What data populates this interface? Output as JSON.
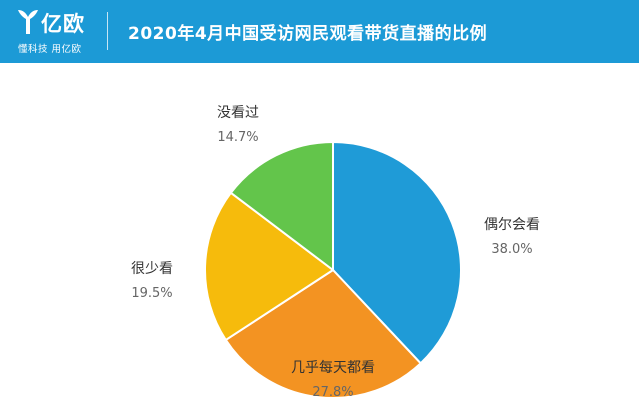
{
  "header": {
    "logo_text": "亿欧",
    "slogan": "懂科技 用亿欧",
    "title": "2020年4月中国受访网民观看带货直播的比例",
    "bg_color": "#1c9ad6"
  },
  "chart_data": {
    "type": "pie",
    "title": "2020年4月中国受访网民观看带货直播的比例",
    "slices": [
      {
        "label": "偶尔会看",
        "value": 38.0,
        "value_text": "38.0%",
        "color": "#1f9bd7"
      },
      {
        "label": "几乎每天都看",
        "value": 27.8,
        "value_text": "27.8%",
        "color": "#f39322"
      },
      {
        "label": "很少看",
        "value": 19.5,
        "value_text": "19.5%",
        "color": "#f6bb0c"
      },
      {
        "label": "没看过",
        "value": 14.7,
        "value_text": "14.7%",
        "color": "#63c54b"
      }
    ],
    "start": "top",
    "direction": "clockwise",
    "legend": "none"
  }
}
